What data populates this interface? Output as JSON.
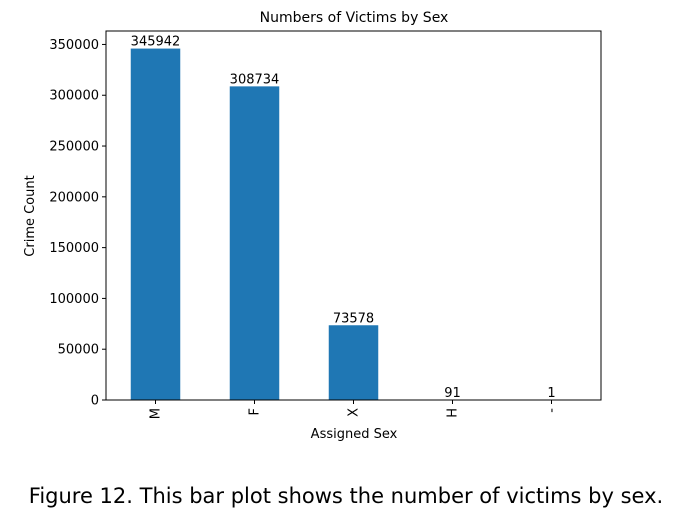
{
  "chart_data": {
    "type": "bar",
    "title": "Numbers of Victims by Sex",
    "xlabel": "Assigned Sex",
    "ylabel": "Crime Count",
    "categories": [
      "M",
      "F",
      "X",
      "H",
      "-"
    ],
    "values": [
      345942,
      308734,
      73578,
      91,
      1
    ],
    "data_labels": [
      "345942",
      "308734",
      "73578",
      "91",
      "1"
    ],
    "ylim": [
      0,
      363239
    ],
    "yticks": [
      0,
      50000,
      100000,
      150000,
      200000,
      250000,
      300000,
      350000
    ],
    "ytick_labels": [
      "0",
      "50000",
      "100000",
      "150000",
      "200000",
      "250000",
      "300000",
      "350000"
    ],
    "bar_color": "#1f77b4",
    "grid": false,
    "legend": "none",
    "xtick_rotation": "vertical"
  },
  "caption": "Figure 12. This bar plot shows the number of victims by sex."
}
